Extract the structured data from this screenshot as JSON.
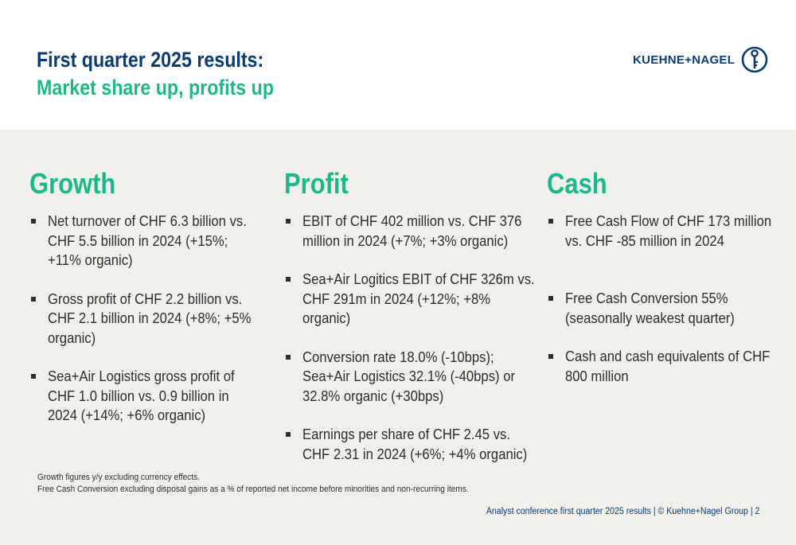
{
  "header": {
    "title": "First quarter 2025 results:",
    "subtitle": "Market share up, profits up",
    "logo_text": "KUEHNE+NAGEL",
    "logo_icon": "anchor-key-icon"
  },
  "colors": {
    "navy": "#0b3b73",
    "green": "#1cb88c",
    "panel": "#f1f0ec"
  },
  "columns": [
    {
      "heading": "Growth",
      "items": [
        "Net turnover of CHF 6.3 billion vs. CHF 5.5 billion in 2024 (+15%; +11% organic)",
        "Gross profit of CHF 2.2 billion vs. CHF 2.1 billion in 2024 (+8%; +5% organic)",
        "Sea+Air Logistics gross profit of CHF 1.0 billion vs. 0.9 billion in 2024 (+14%; +6% organic)"
      ]
    },
    {
      "heading": "Profit",
      "items": [
        "EBIT of CHF 402 million vs. CHF 376 million in 2024 (+7%; +3% organic)",
        "Sea+Air Logitics EBIT of CHF 326m vs. CHF 291m in 2024 (+12%; +8% organic)",
        "Conversion rate 18.0% (-10bps); Sea+Air Logistics 32.1% (-40bps) or 32.8% organic (+30bps)",
        "Earnings per share of CHF 2.45 vs. CHF 2.31 in 2024 (+6%; +4% organic)"
      ]
    },
    {
      "heading": "Cash",
      "items": [
        "Free Cash Flow of CHF 173 million vs. CHF -85 million in 2024",
        "Free Cash Conversion 55% (seasonally weakest quarter)",
        "Cash and cash equivalents of CHF 800 million"
      ]
    }
  ],
  "notes": [
    "Growth figures y/y excluding currency effects.",
    "Free Cash Conversion excluding disposal gains as a % of reported net income before minorities and non-recurring items."
  ],
  "footer": "Analyst conference first quarter 2025 results | © Kuehne+Nagel Group | 2"
}
